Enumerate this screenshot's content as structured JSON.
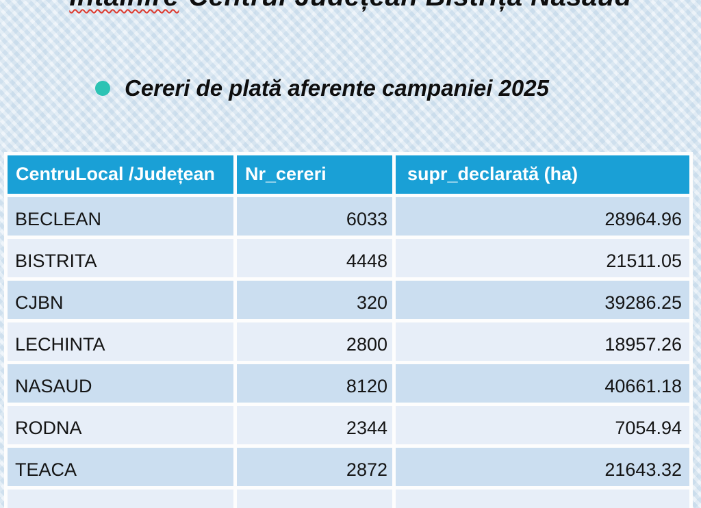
{
  "slide": {
    "title": {
      "clipped_word": "Întâlnire",
      "rest": "Centrul Județean Bistrița Năsăud"
    },
    "bullet": {
      "icon": "teal-dot-bullet",
      "text": "Cereri de plată aferente campaniei 2025"
    },
    "colors": {
      "header_bg": "#1aa0d6",
      "row_odd_bg": "#cbdef0",
      "row_even_bg": "#e7eef8",
      "grid": "#fdfdfd",
      "bullet_dot": "#2cc3b4",
      "spellcheck_underline": "#dd372b",
      "slide_bg": "#d8e6f1",
      "text": "#0e0e0e"
    },
    "table": {
      "headers": [
        "CentruLocal /Județean",
        "Nr_cereri",
        "supr_declarată (ha)"
      ],
      "rows": [
        [
          "BECLEAN",
          "6033",
          "28964.96"
        ],
        [
          "BISTRITA",
          "4448",
          "21511.05"
        ],
        [
          "CJBN",
          "320",
          "39286.25"
        ],
        [
          "LECHINTA",
          "2800",
          "18957.26"
        ],
        [
          "NASAUD",
          "8120",
          "40661.18"
        ],
        [
          "RODNA",
          "2344",
          "7054.94"
        ],
        [
          "TEACA",
          "2872",
          "21643.32"
        ],
        [
          "",
          "",
          ""
        ]
      ]
    }
  }
}
